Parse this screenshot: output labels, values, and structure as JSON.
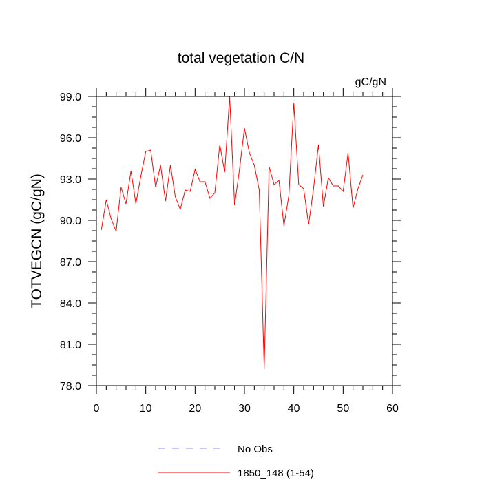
{
  "chart_data": {
    "type": "line",
    "title": "total vegetation C/N",
    "units_label": "gC/gN",
    "ylabel": "TOTVEGCN  (gC/gN)",
    "xlabel": "",
    "xlim": [
      0,
      60
    ],
    "ylim": [
      78,
      99
    ],
    "x_ticks": [
      0,
      10,
      20,
      30,
      40,
      50,
      60
    ],
    "x_tick_labels": [
      "0",
      "10",
      "20",
      "30",
      "40",
      "50",
      "60"
    ],
    "y_ticks": [
      78,
      81,
      84,
      87,
      90,
      93,
      96,
      99
    ],
    "y_tick_labels": [
      "78.0",
      "81.0",
      "84.0",
      "87.0",
      "90.0",
      "93.0",
      "96.0",
      "99.0"
    ],
    "grid": false,
    "legend_position": "bottom",
    "series": [
      {
        "name": "1850_148 (1-54)",
        "color": "#ff0000",
        "style": "solid",
        "x": [
          1,
          2,
          3,
          4,
          5,
          6,
          7,
          8,
          9,
          10,
          11,
          12,
          13,
          14,
          15,
          16,
          17,
          18,
          19,
          20,
          21,
          22,
          23,
          24,
          25,
          26,
          27,
          28,
          29,
          30,
          31,
          32,
          33,
          34,
          35,
          36,
          37,
          38,
          39,
          40,
          41,
          42,
          43,
          44,
          45,
          46,
          47,
          48,
          49,
          50,
          51,
          52,
          53,
          54
        ],
        "values": [
          89.3,
          91.5,
          90.1,
          89.2,
          92.4,
          91.2,
          93.6,
          91.2,
          93.2,
          95.0,
          95.1,
          92.4,
          94.0,
          91.4,
          94.0,
          91.7,
          90.8,
          92.2,
          92.1,
          93.7,
          92.8,
          92.8,
          91.6,
          92.0,
          95.5,
          93.5,
          99.0,
          91.1,
          93.7,
          96.7,
          94.9,
          94.0,
          92.2,
          79.2,
          93.9,
          92.6,
          92.9,
          89.6,
          91.8,
          98.5,
          92.6,
          92.3,
          89.7,
          92.3,
          95.5,
          91.0,
          93.1,
          92.5,
          92.5,
          92.1,
          94.9,
          90.9,
          92.3,
          93.3
        ]
      }
    ],
    "legend": [
      {
        "label": "No Obs",
        "color": "#8888ff",
        "style": "dashed"
      },
      {
        "label": "1850_148 (1-54)",
        "color": "#ff0000",
        "style": "solid"
      }
    ]
  }
}
